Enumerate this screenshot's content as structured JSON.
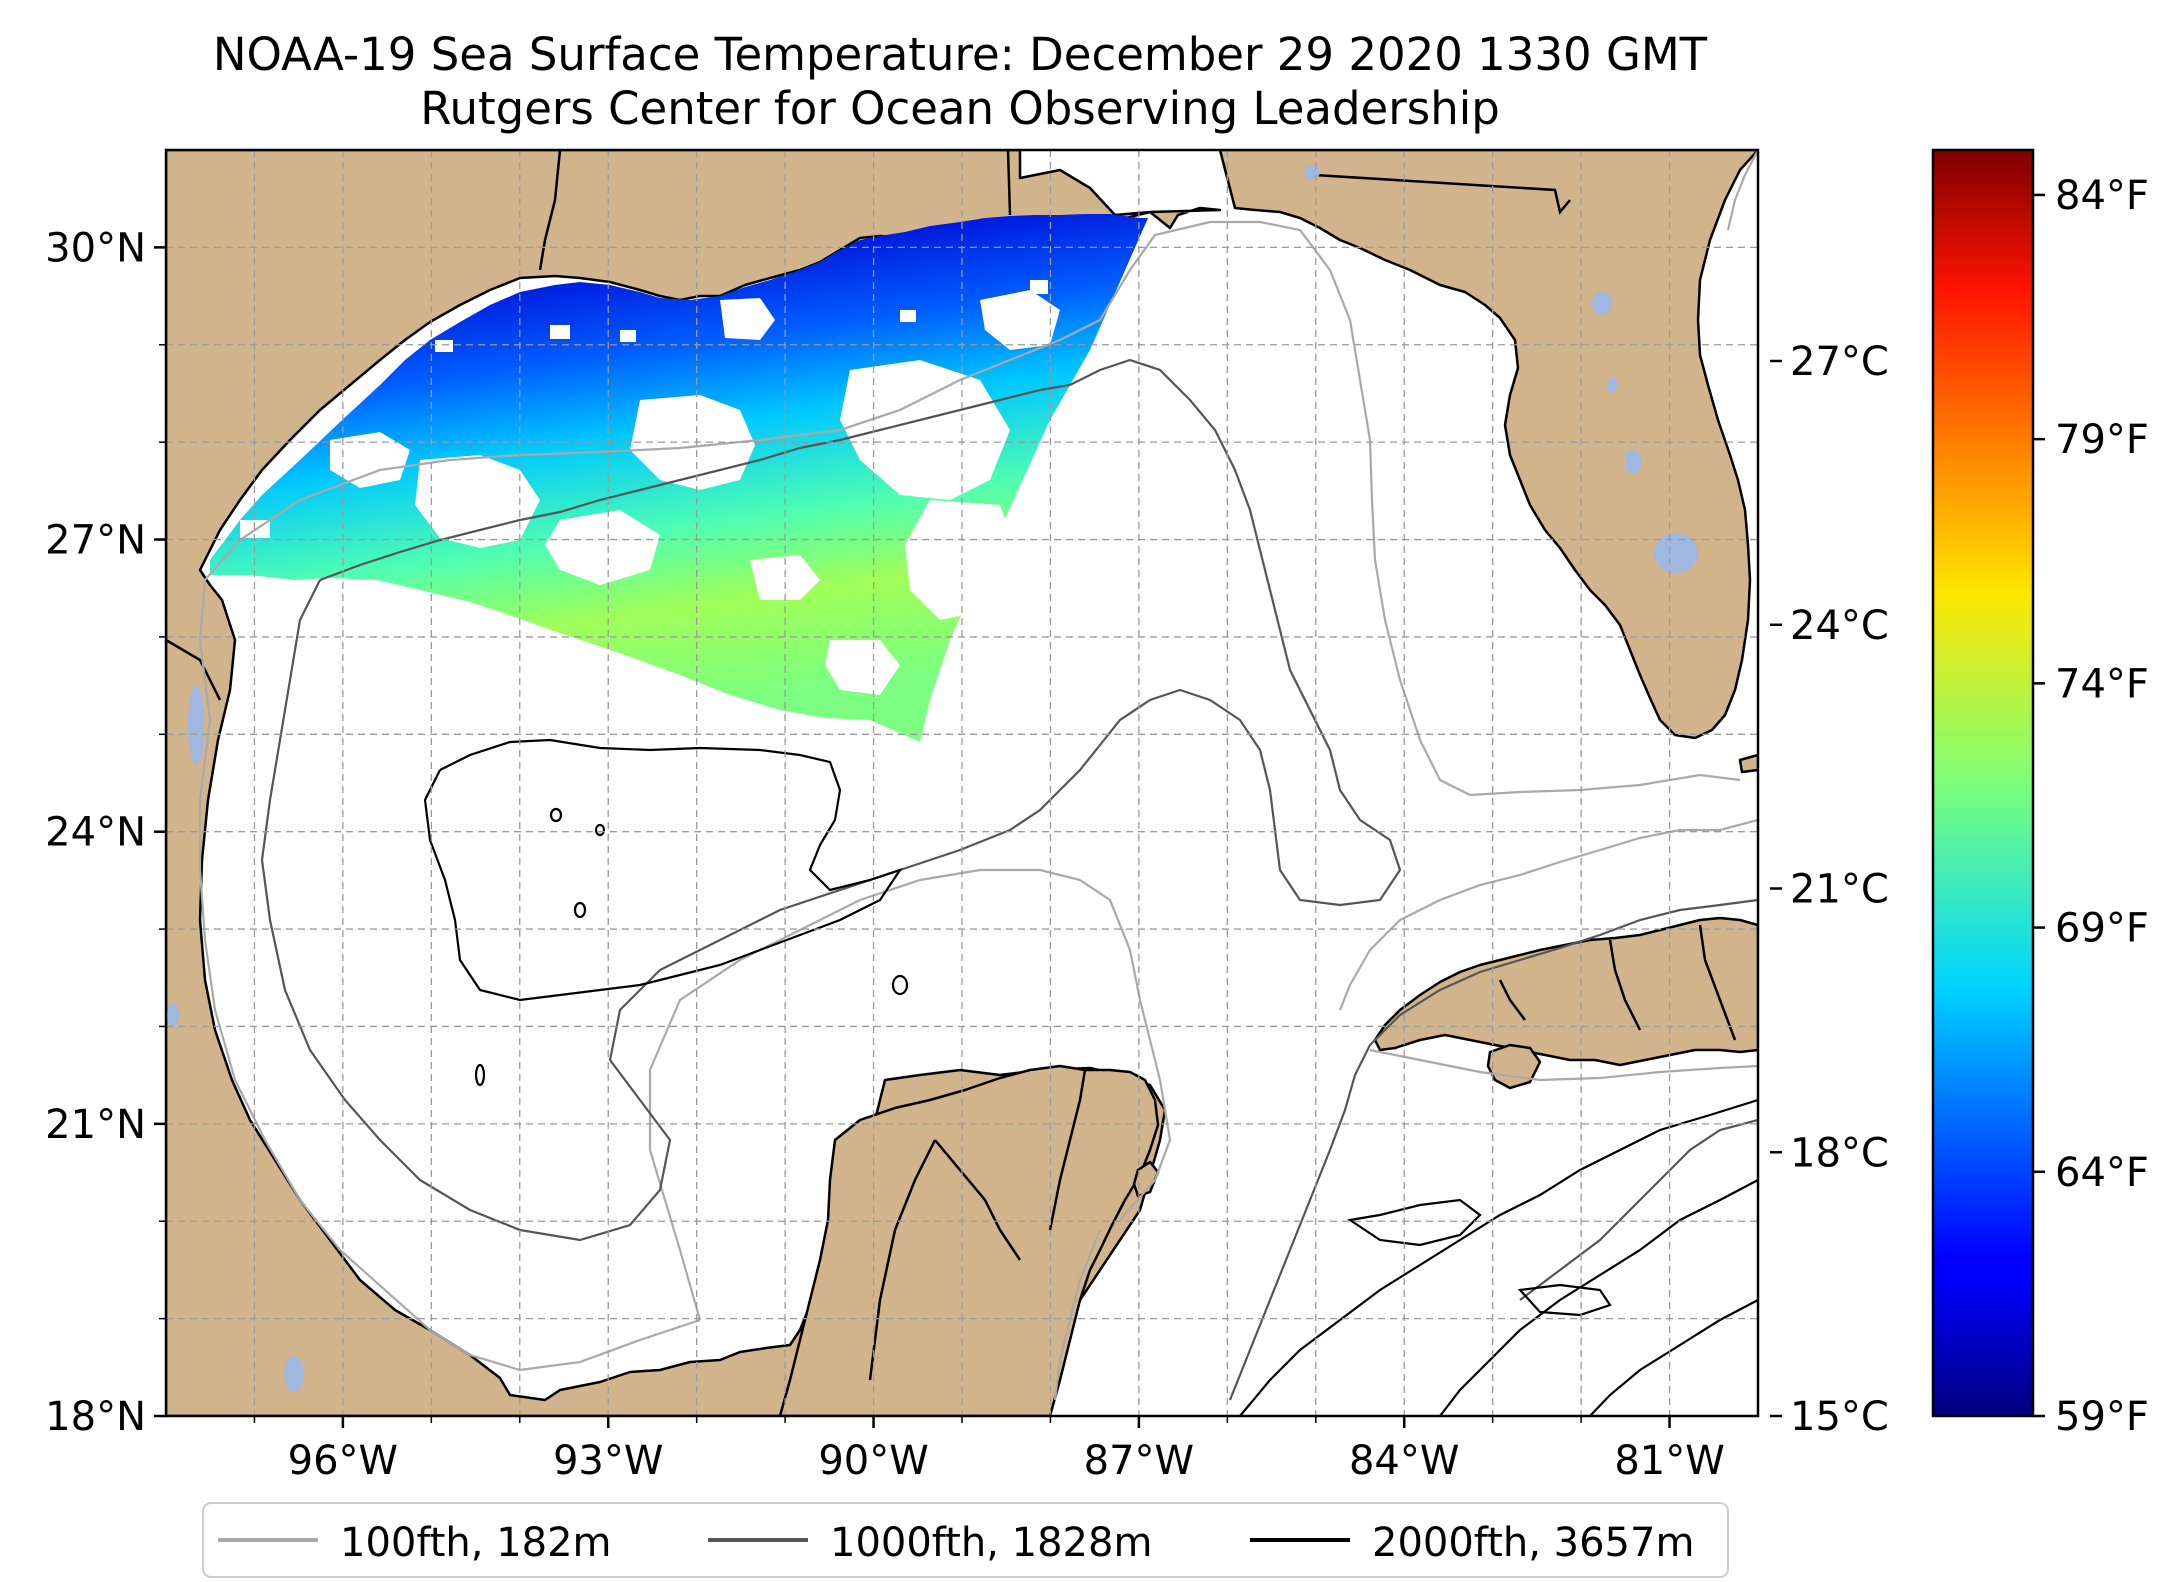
{
  "title": "NOAA-19 Sea Surface Temperature: December 29 2020 1330 GMT",
  "subtitle": "Rutgers Center for Ocean Observing Leadership",
  "map": {
    "lat_labels": [
      "30°N",
      "27°N",
      "24°N",
      "21°N",
      "18°N"
    ],
    "lon_labels": [
      "96°W",
      "93°W",
      "90°W",
      "87°W",
      "84°W",
      "81°W"
    ],
    "lon_range": [
      -98,
      -80
    ],
    "lat_range": [
      18,
      31
    ],
    "land_color": "#d2b48c",
    "lake_color": "#9fb8e0",
    "gridlines": true
  },
  "colorbar": {
    "celsius_labels": [
      "27°C",
      "24°C",
      "21°C",
      "18°C",
      "15°C"
    ],
    "fahrenheit_labels": [
      "84°F",
      "79°F",
      "74°F",
      "69°F",
      "64°F",
      "59°F"
    ],
    "colormap": "jet",
    "range_c": [
      15,
      29.4
    ]
  },
  "legend": {
    "items": [
      {
        "label": "100fth, 182m",
        "color": "#a9a9a9"
      },
      {
        "label": "1000fth, 1828m",
        "color": "#555555"
      },
      {
        "label": "2000fth, 3657m",
        "color": "#000000"
      }
    ]
  }
}
